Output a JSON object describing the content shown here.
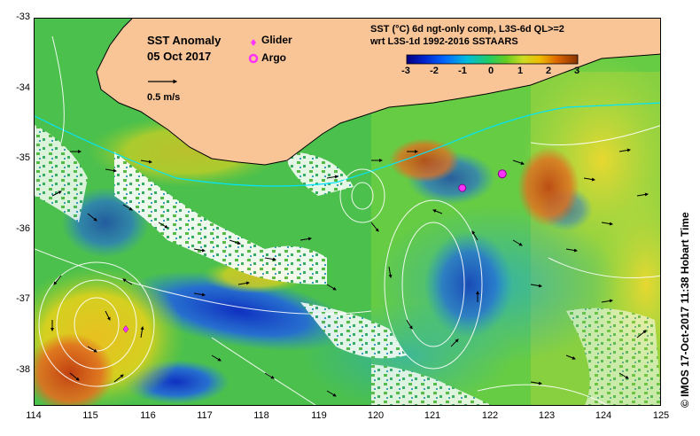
{
  "title": "SST Anomaly",
  "date": "05 Oct 2017",
  "legend": {
    "glider": {
      "label": "Glider",
      "color": "#ff33ff"
    },
    "argo": {
      "label": "Argo",
      "color": "#ff33ff"
    }
  },
  "velocity_scale": {
    "label": "0.5 m/s"
  },
  "product": {
    "line1": "SST (°C) 6d ngt-only comp, L3S-6d QL>=2",
    "line2": "wrt L3S-1d 1992-2016 SSTAARS"
  },
  "colorbar": {
    "ticks": [
      "-3",
      "-2",
      "-1",
      "0",
      "1",
      "2",
      "3"
    ],
    "min": -3,
    "max": 3
  },
  "axes": {
    "x_ticks": [
      "114",
      "115",
      "116",
      "117",
      "118",
      "119",
      "120",
      "121",
      "122",
      "123",
      "124",
      "125"
    ],
    "y_ticks": [
      "-33",
      "-34",
      "-35",
      "-36",
      "-37",
      "-38"
    ],
    "xlim": [
      114,
      125
    ],
    "ylim": [
      -38.5,
      -33
    ]
  },
  "markers": {
    "glider": {
      "lon": 115.6,
      "lat": -37.4
    },
    "argo": [
      {
        "lon": 122.2,
        "lat": -35.2
      },
      {
        "lon": 121.5,
        "lat": -35.4
      }
    ]
  },
  "credit": "© IMOS 17-Oct-2017 11:38 Hobart Time",
  "colors": {
    "land": "#f9c596",
    "coast_line": "#00e5ff",
    "contour": "#ffffff"
  }
}
